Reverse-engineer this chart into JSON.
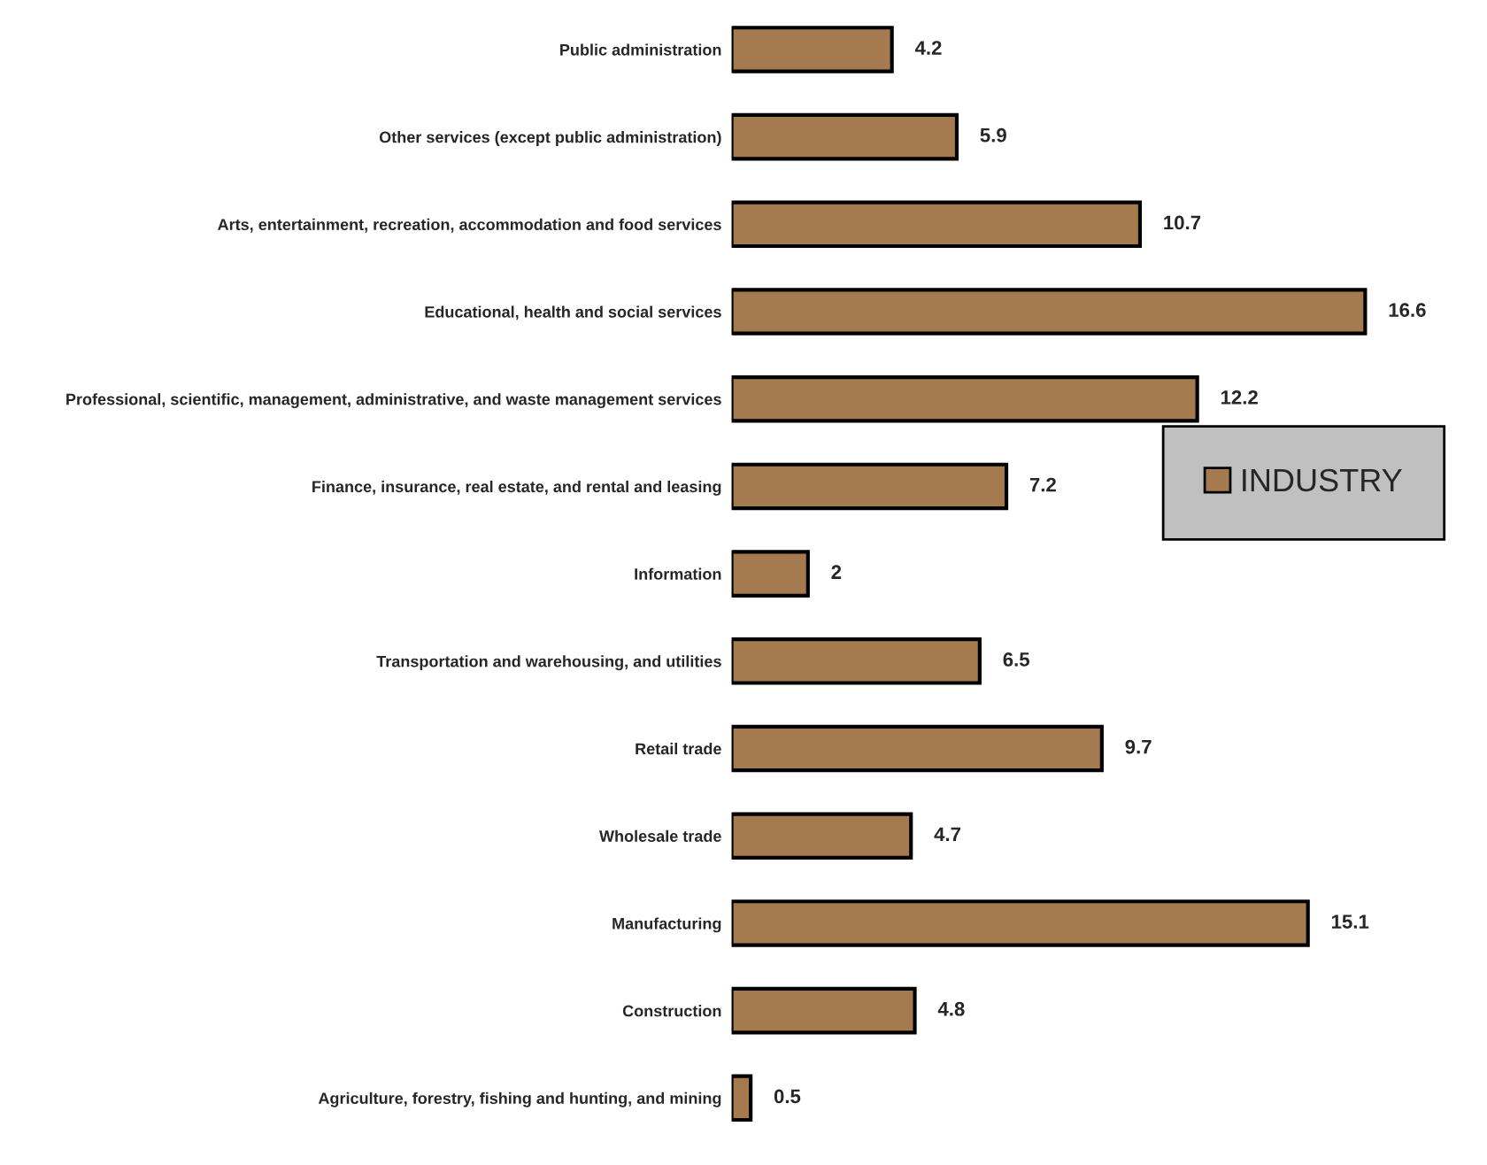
{
  "chart_data": {
    "type": "bar",
    "orientation": "horizontal",
    "categories": [
      "Public administration",
      "Other services (except public administration)",
      "Arts, entertainment, recreation, accommodation and food services",
      "Educational, health and social services",
      "Professional, scientific, management, administrative, and waste management services",
      "Finance, insurance, real estate, and rental and leasing",
      "Information",
      "Transportation and warehousing, and utilities",
      "Retail trade",
      "Wholesale trade",
      "Manufacturing",
      "Construction",
      "Agriculture, forestry, fishing and hunting, and mining"
    ],
    "series": [
      {
        "name": "INDUSTRY",
        "color": "#a57a4e",
        "values": [
          4.2,
          5.9,
          10.7,
          16.6,
          12.2,
          7.2,
          2,
          6.5,
          9.7,
          4.7,
          15.1,
          4.8,
          0.5
        ]
      }
    ],
    "data_labels": true,
    "legend": "right",
    "grid": false,
    "tick_labels": "y"
  }
}
